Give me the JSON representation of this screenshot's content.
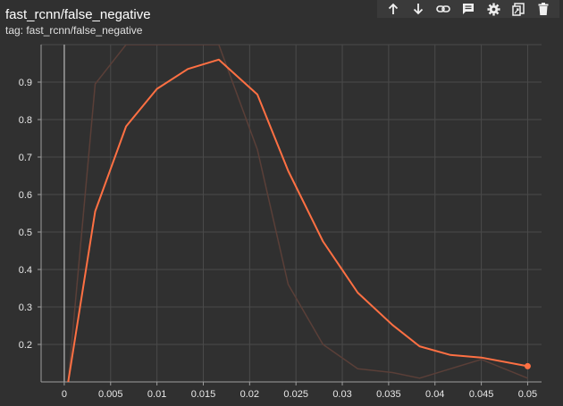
{
  "card": {
    "title": "fast_rcnn/false_negative",
    "tag": "tag: fast_rcnn/false_negative"
  },
  "toolbar": {
    "icons": [
      "arrow-up-icon",
      "arrow-down-icon",
      "link-icon",
      "comment-icon",
      "settings-icon",
      "fit-domain-icon",
      "delete-icon"
    ]
  },
  "colors": {
    "background": "#303030",
    "grid": "#4a4a4a",
    "smoothed_line": "#ff7043",
    "raw_line": "#5a3f38",
    "axis": "#9e9e9e"
  },
  "chart_data": {
    "type": "line",
    "title": "fast_rcnn/false_negative",
    "xlabel": "",
    "ylabel": "",
    "xlim": [
      -0.0025,
      0.0515
    ],
    "ylim": [
      0.1,
      1.0
    ],
    "xticks": [
      0,
      0.005,
      0.01,
      0.015,
      0.02,
      0.025,
      0.03,
      0.035,
      0.04,
      0.045,
      0.05
    ],
    "xtick_labels": [
      "0",
      "0.005",
      "0.01",
      "0.015",
      "0.02",
      "0.025",
      "0.03",
      "0.035",
      "0.04",
      "0.045",
      "0.05"
    ],
    "yticks": [
      0.2,
      0.3,
      0.4,
      0.5,
      0.6,
      0.7,
      0.8,
      0.9
    ],
    "ytick_labels": [
      "0.2",
      "0.3",
      "0.4",
      "0.5",
      "0.6",
      "0.7",
      "0.8",
      "0.9"
    ],
    "grid": true,
    "series": [
      {
        "name": "raw",
        "x": [
          0.000417,
          0.003333,
          0.006667,
          0.01,
          0.013333,
          0.016667,
          0.020833,
          0.024167,
          0.027917,
          0.031667,
          0.035417,
          0.038333,
          0.041667,
          0.045,
          0.05
        ],
        "y": [
          0.1,
          0.895,
          1.0,
          1.0,
          1.0,
          1.0,
          0.72,
          0.36,
          0.2,
          0.135,
          0.125,
          0.11,
          0.135,
          0.16,
          0.11
        ]
      },
      {
        "name": "smoothed",
        "x": [
          0.000417,
          0.003333,
          0.006667,
          0.01,
          0.013333,
          0.016667,
          0.020833,
          0.024167,
          0.027917,
          0.031667,
          0.035417,
          0.038333,
          0.041667,
          0.045,
          0.05
        ],
        "y": [
          0.1,
          0.555,
          0.782,
          0.882,
          0.935,
          0.96,
          0.867,
          0.663,
          0.475,
          0.338,
          0.252,
          0.195,
          0.172,
          0.165,
          0.142
        ]
      }
    ],
    "last_point_marker": {
      "x": 0.05,
      "y": 0.142
    }
  }
}
